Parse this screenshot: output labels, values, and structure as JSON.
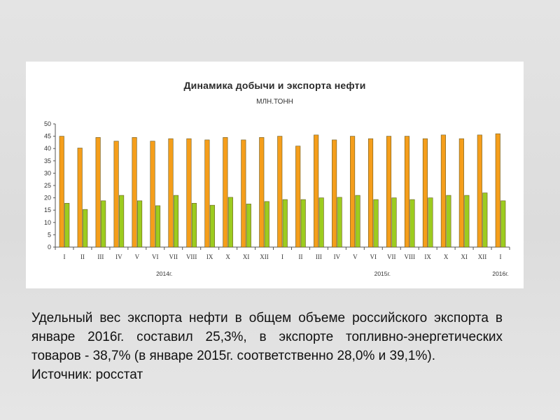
{
  "chart_data": {
    "type": "bar",
    "title": "Динамика добычи и экспорта нефти",
    "subtitle": "МЛН.ТОНН",
    "categories": [
      "I",
      "II",
      "III",
      "IV",
      "V",
      "VI",
      "VII",
      "VIII",
      "IX",
      "X",
      "XI",
      "XII",
      "I",
      "II",
      "III",
      "IV",
      "V",
      "VI",
      "VII",
      "VIII",
      "IX",
      "X",
      "XI",
      "XII",
      "I"
    ],
    "year_labels": [
      {
        "label": "2014г.",
        "from": 0,
        "to": 11
      },
      {
        "label": "2015г.",
        "from": 12,
        "to": 23
      },
      {
        "label": "2016г.",
        "from": 24,
        "to": 24
      }
    ],
    "series": [
      {
        "color": "#f59e1b",
        "values": [
          45,
          40.2,
          44.5,
          43,
          44.5,
          43,
          44,
          44,
          43.5,
          44.5,
          43.5,
          44.5,
          45,
          41,
          45.5,
          43.5,
          45,
          44,
          45,
          45,
          44,
          45.5,
          44,
          45.5,
          46
        ]
      },
      {
        "color": "#9ccc1f",
        "values": [
          17.8,
          15.3,
          18.8,
          21,
          18.8,
          16.8,
          21,
          17.8,
          17,
          20.2,
          17.5,
          18.5,
          19.3,
          19.3,
          20,
          20.2,
          21,
          19.3,
          20,
          19.3,
          20,
          21,
          21,
          22,
          18.8
        ]
      }
    ],
    "yticks": [
      0,
      5,
      10,
      15,
      20,
      25,
      30,
      35,
      40,
      45,
      50
    ],
    "ylim": [
      0,
      50
    ],
    "xlabel": "",
    "ylabel": "",
    "grid": false
  },
  "caption": {
    "text": "Удельный вес экспорта нефти в общем объеме российского экспорта в январе 2016г. составил 25,3%, в экспорте топливно-энергетических товаров - 38,7% (в январе 2015г. соответственно 28,0% и 39,1%).",
    "source": "Источник: росстат"
  }
}
